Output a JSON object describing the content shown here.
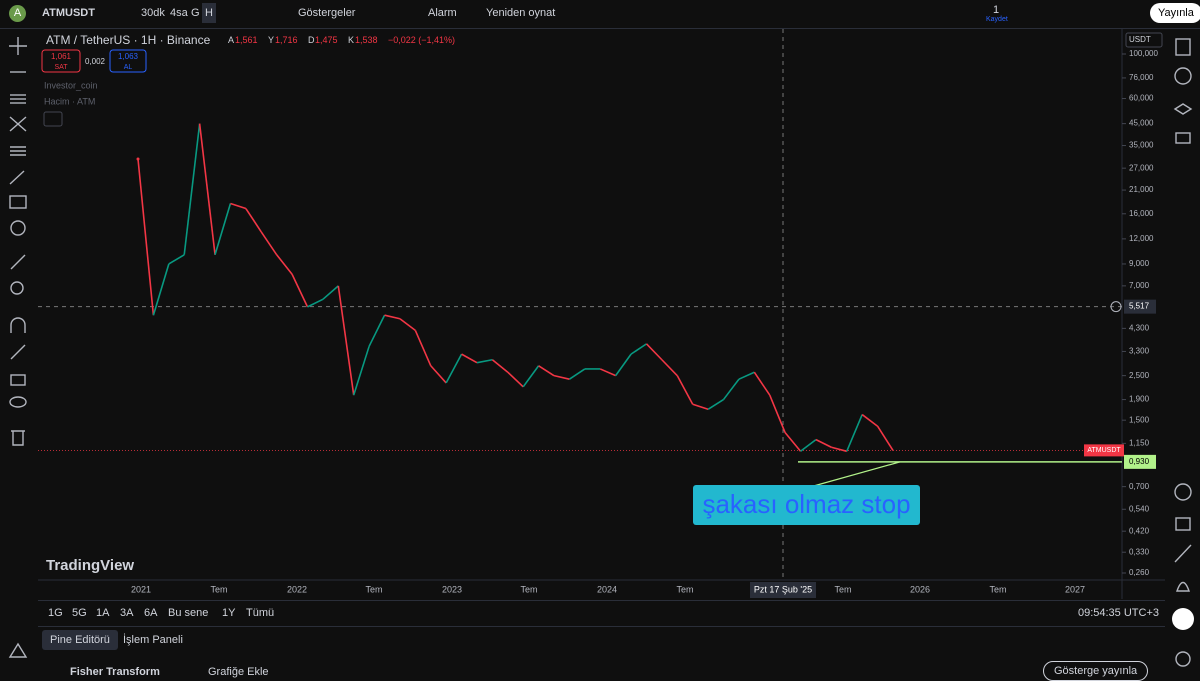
{
  "toolbar": {
    "symbol": "ATMUSDT",
    "intervals": [
      "30dk",
      "4sa",
      "G",
      "H"
    ],
    "indicators": "Göstergeler",
    "alert": "Alarm",
    "replay": "Yeniden oynat",
    "save_count": "1",
    "save": "Kaydet",
    "publish": "Yayınla"
  },
  "legend": {
    "title": "ATM / TetherUS · 1H · Binance",
    "ohlc": [
      {
        "k": "A",
        "v": "1,561"
      },
      {
        "k": "Y",
        "v": "1,716"
      },
      {
        "k": "D",
        "v": "1,475"
      },
      {
        "k": "K",
        "v": "1,538"
      }
    ],
    "change": "−0,022 (−1,41%)",
    "sell_price": "1,061",
    "sell": "SAT",
    "spread": "0,002",
    "buy_price": "1,063",
    "buy": "AL",
    "indicators": [
      "Investor_coin",
      "Hacim · ATM"
    ]
  },
  "chart_data": {
    "type": "line",
    "currency": "USDT",
    "log_scale": true,
    "values": [
      30,
      5,
      9,
      10,
      45,
      10,
      18,
      17,
      13,
      10,
      8,
      5.5,
      6,
      7,
      2,
      3.5,
      5,
      4.8,
      4.2,
      2.8,
      2.3,
      3.2,
      2.9,
      3,
      2.6,
      2.2,
      2.8,
      2.5,
      2.4,
      2.7,
      2.7,
      2.5,
      3.2,
      3.6,
      3.0,
      2.5,
      1.8,
      1.7,
      1.9,
      2.4,
      2.6,
      2.0,
      1.3,
      1.05,
      1.2,
      1.1,
      1.05,
      1.6,
      1.4,
      1.06
    ],
    "up_color": "#089981",
    "down_color": "#f23645",
    "ylim": [
      0.26,
      100
    ],
    "yticks": [
      {
        "value": 100,
        "label": "100,000"
      },
      {
        "value": 76,
        "label": "76,000"
      },
      {
        "value": 60,
        "label": "60,000"
      },
      {
        "value": 45,
        "label": "45,000"
      },
      {
        "value": 35,
        "label": "35,000"
      },
      {
        "value": 27,
        "label": "27,000"
      },
      {
        "value": 21,
        "label": "21,000"
      },
      {
        "value": 16,
        "label": "16,000"
      },
      {
        "value": 12,
        "label": "12,000"
      },
      {
        "value": 9,
        "label": "9,000"
      },
      {
        "value": 7,
        "label": "7,000"
      },
      {
        "value": 4.3,
        "label": "4,300"
      },
      {
        "value": 3.3,
        "label": "3,300"
      },
      {
        "value": 2.5,
        "label": "2,500"
      },
      {
        "value": 1.9,
        "label": "1,900"
      },
      {
        "value": 1.5,
        "label": "1,500"
      },
      {
        "value": 1.15,
        "label": "1,150"
      },
      {
        "value": 0.7,
        "label": "0,700"
      },
      {
        "value": 0.54,
        "label": "0,540"
      },
      {
        "value": 0.42,
        "label": "0,420"
      },
      {
        "value": 0.33,
        "label": "0,330"
      },
      {
        "value": 0.26,
        "label": "0,260"
      }
    ],
    "crosshair": {
      "value": 5.517,
      "label": "5,517",
      "date": "Pzt 17 Şub '25"
    },
    "last_price": {
      "value": 1.061,
      "label": "ATMUSDT"
    },
    "stop_level": {
      "value": 0.93,
      "label": "0,930",
      "color": "#b2f28a"
    },
    "annotation": "şakası olmaz stop",
    "x_labels": [
      "2021",
      "Tem",
      "2022",
      "Tem",
      "2023",
      "Tem",
      "2024",
      "Tem",
      "Tem",
      "2026",
      "Tem",
      "2027"
    ],
    "watermark": "TradingView"
  },
  "range_bar": {
    "ranges": [
      "1G",
      "5G",
      "1A",
      "3A",
      "6A",
      "Bu sene",
      "1Y",
      "Tümü"
    ],
    "clock": "09:54:35 UTC+3"
  },
  "bottom_panel": {
    "tabs": [
      "Pine Editörü",
      "İşlem Paneli"
    ],
    "script": "Fisher Transform",
    "add": "Grafiğe Ekle",
    "publish": "Gösterge yayınla"
  }
}
